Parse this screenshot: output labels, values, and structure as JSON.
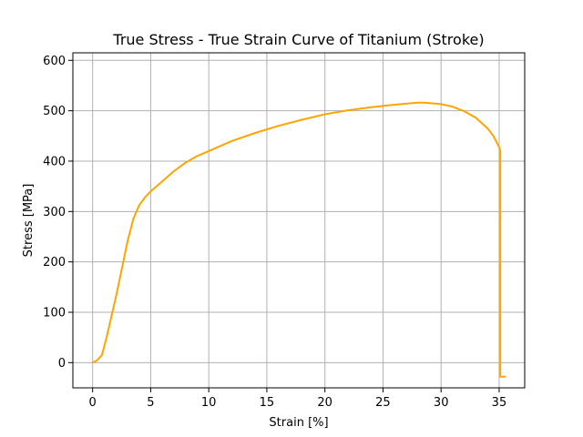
{
  "chart_data": {
    "type": "line",
    "title": "True Stress - True Strain Curve of Titanium (Stroke)",
    "xlabel": "Strain [%]",
    "ylabel": "Stress [MPa]",
    "xlim": [
      -1.7,
      37.2
    ],
    "ylim": [
      -50,
      615
    ],
    "xticks": [
      0,
      5,
      10,
      15,
      20,
      25,
      30,
      35
    ],
    "yticks": [
      0,
      100,
      200,
      300,
      400,
      500,
      600
    ],
    "xtick_labels": [
      "0",
      "5",
      "10",
      "15",
      "20",
      "25",
      "30",
      "35"
    ],
    "ytick_labels": [
      "0",
      "100",
      "200",
      "300",
      "400",
      "500",
      "600"
    ],
    "grid": true,
    "series": [
      {
        "color": "#ffa500",
        "x": [
          0,
          0.4,
          0.8,
          1.2,
          1.6,
          2.0,
          2.5,
          3.0,
          3.5,
          4.0,
          4.5,
          5.0,
          5.5,
          6.0,
          7.0,
          8.0,
          9.0,
          10.0,
          12.0,
          14.0,
          16.0,
          18.0,
          20.0,
          22.0,
          24.0,
          26.0,
          27.0,
          28.0,
          28.5,
          29.0,
          30.0,
          31.0,
          32.0,
          33.0,
          34.0,
          34.5,
          35.0,
          35.1,
          35.1,
          35.5
        ],
        "y": [
          0,
          5,
          15,
          50,
          90,
          130,
          185,
          240,
          285,
          312,
          328,
          340,
          350,
          360,
          380,
          397,
          410,
          420,
          440,
          456,
          470,
          482,
          493,
          501,
          507,
          512,
          514,
          516,
          516,
          515,
          513,
          508,
          499,
          486,
          465,
          450,
          428,
          420,
          -28,
          -28
        ]
      }
    ]
  }
}
